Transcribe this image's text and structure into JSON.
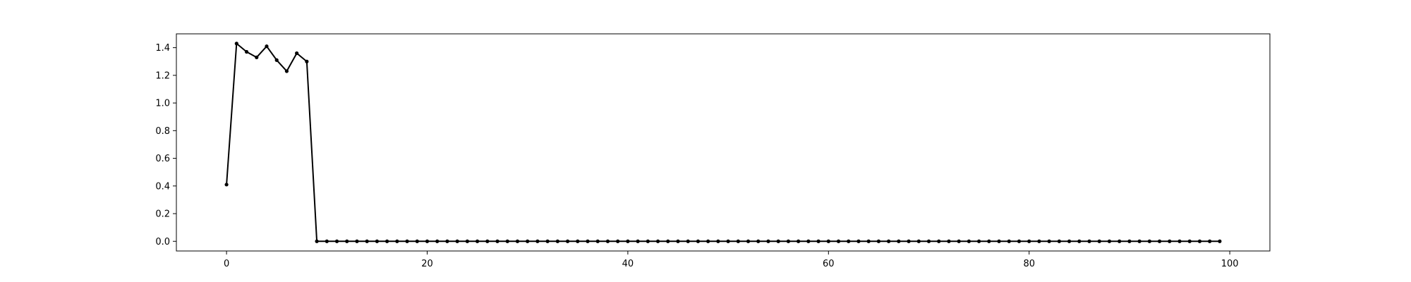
{
  "chart_data": {
    "type": "line",
    "title": "",
    "xlabel": "",
    "ylabel": "",
    "xlim": [
      -5,
      104
    ],
    "ylim": [
      -0.07,
      1.5
    ],
    "grid": false,
    "legend": "none",
    "line_color": "#000000",
    "marker": "point",
    "x_ticks": [
      0,
      20,
      40,
      60,
      80,
      100
    ],
    "x_tick_labels": [
      "0",
      "20",
      "40",
      "60",
      "80",
      "100"
    ],
    "y_ticks": [
      0.0,
      0.2,
      0.4,
      0.6,
      0.8,
      1.0,
      1.2,
      1.4
    ],
    "y_tick_labels": [
      "0.0",
      "0.2",
      "0.4",
      "0.6",
      "0.8",
      "1.0",
      "1.2",
      "1.4"
    ],
    "series": [
      {
        "x": [
          0,
          1,
          2,
          3,
          4,
          5,
          6,
          7,
          8,
          9,
          10,
          11,
          12,
          13,
          14,
          15,
          16,
          17,
          18,
          19,
          20,
          21,
          22,
          23,
          24,
          25,
          26,
          27,
          28,
          29,
          30,
          31,
          32,
          33,
          34,
          35,
          36,
          37,
          38,
          39,
          40,
          41,
          42,
          43,
          44,
          45,
          46,
          47,
          48,
          49,
          50,
          51,
          52,
          53,
          54,
          55,
          56,
          57,
          58,
          59,
          60,
          61,
          62,
          63,
          64,
          65,
          66,
          67,
          68,
          69,
          70,
          71,
          72,
          73,
          74,
          75,
          76,
          77,
          78,
          79,
          80,
          81,
          82,
          83,
          84,
          85,
          86,
          87,
          88,
          89,
          90,
          91,
          92,
          93,
          94,
          95,
          96,
          97,
          98,
          99
        ],
        "y": [
          0.41,
          1.43,
          1.37,
          1.33,
          1.41,
          1.31,
          1.23,
          1.36,
          1.3,
          0,
          0,
          0,
          0,
          0,
          0,
          0,
          0,
          0,
          0,
          0,
          0,
          0,
          0,
          0,
          0,
          0,
          0,
          0,
          0,
          0,
          0,
          0,
          0,
          0,
          0,
          0,
          0,
          0,
          0,
          0,
          0,
          0,
          0,
          0,
          0,
          0,
          0,
          0,
          0,
          0,
          0,
          0,
          0,
          0,
          0,
          0,
          0,
          0,
          0,
          0,
          0,
          0,
          0,
          0,
          0,
          0,
          0,
          0,
          0,
          0,
          0,
          0,
          0,
          0,
          0,
          0,
          0,
          0,
          0,
          0,
          0,
          0,
          0,
          0,
          0,
          0,
          0,
          0,
          0,
          0,
          0,
          0,
          0,
          0,
          0,
          0,
          0,
          0,
          0,
          0
        ]
      }
    ]
  }
}
